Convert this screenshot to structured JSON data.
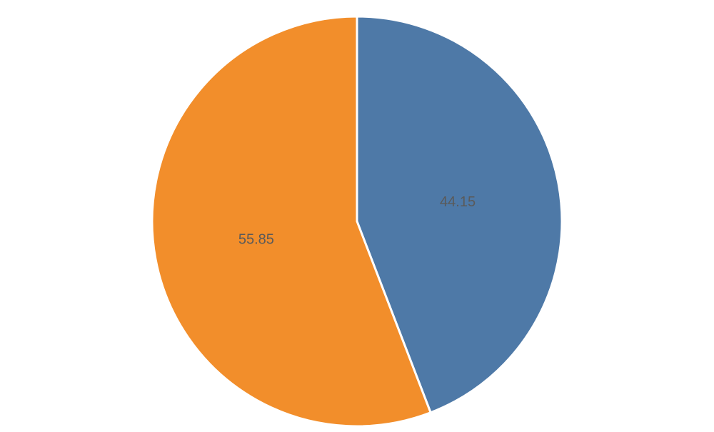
{
  "chart_data": {
    "type": "pie",
    "values": [
      44.15,
      55.85
    ],
    "colors": [
      "#4e79a7",
      "#f28e2b"
    ],
    "start_angle": "top",
    "direction": "clockwise"
  }
}
